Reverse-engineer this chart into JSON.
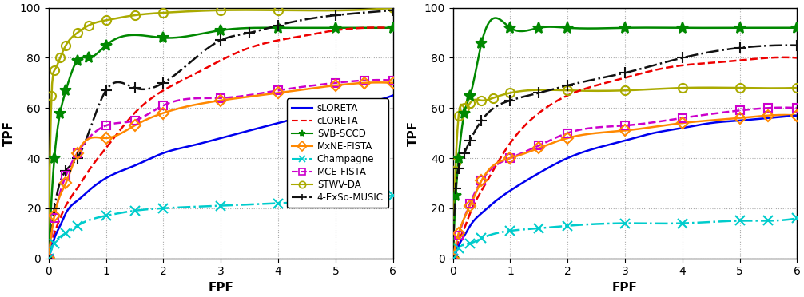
{
  "plot1": {
    "xlabel": "FPF",
    "ylabel": "TPF",
    "xlim": [
      0,
      6
    ],
    "ylim": [
      0,
      100
    ],
    "xticks": [
      0,
      1,
      2,
      3,
      4,
      5,
      6
    ],
    "yticks": [
      0,
      20,
      40,
      60,
      80,
      100
    ],
    "curves": {
      "sLORETA": {
        "color": "#0000ee",
        "linestyle": "-",
        "marker": null,
        "markersize": 0,
        "linewidth": 1.8,
        "markevery": null,
        "x": [
          0,
          0.05,
          0.1,
          0.2,
          0.3,
          0.5,
          0.7,
          1.0,
          1.5,
          2.0,
          2.5,
          3.0,
          3.5,
          4.0,
          4.5,
          5.0,
          5.5,
          6.0
        ],
        "y": [
          0,
          4,
          8,
          13,
          18,
          23,
          27,
          32,
          37,
          42,
          45,
          48,
          51,
          54,
          57,
          60,
          62,
          65
        ]
      },
      "cLORETA": {
        "color": "#ee0000",
        "linestyle": "--",
        "marker": null,
        "markersize": 0,
        "linewidth": 1.8,
        "markevery": null,
        "x": [
          0,
          0.05,
          0.1,
          0.2,
          0.3,
          0.5,
          0.7,
          1.0,
          1.5,
          2.0,
          2.5,
          3.0,
          3.5,
          4.0,
          4.5,
          5.0,
          5.5,
          6.0
        ],
        "y": [
          0,
          6,
          10,
          16,
          21,
          28,
          35,
          44,
          58,
          67,
          73,
          79,
          84,
          87,
          89,
          91,
          92,
          92
        ]
      },
      "SVB-SCCD": {
        "color": "#008800",
        "linestyle": "-",
        "marker": "*",
        "markersize": 10,
        "linewidth": 1.8,
        "markevery": [
          0,
          1,
          2,
          3,
          4,
          5,
          6,
          7,
          8,
          9,
          10,
          11
        ],
        "x": [
          0,
          0.1,
          0.2,
          0.3,
          0.5,
          0.7,
          1.0,
          2.0,
          3.0,
          4.0,
          5.0,
          6.0
        ],
        "y": [
          0,
          40,
          58,
          67,
          79,
          80,
          85,
          88,
          91,
          92,
          92,
          92
        ]
      },
      "MxNE-FISTA": {
        "color": "#ff8800",
        "linestyle": "-",
        "marker": "D",
        "markersize": 7,
        "linewidth": 1.8,
        "markevery": [
          0,
          1,
          2,
          3,
          4,
          5,
          6,
          7,
          8,
          9,
          10,
          11
        ],
        "x": [
          0,
          0.1,
          0.3,
          0.5,
          1.0,
          1.5,
          2.0,
          3.0,
          4.0,
          5.0,
          5.5,
          6.0
        ],
        "y": [
          0,
          17,
          30,
          42,
          48,
          53,
          58,
          63,
          66,
          69,
          70,
          70
        ]
      },
      "Champagne": {
        "color": "#00cccc",
        "linestyle": "-.",
        "marker": "x",
        "markersize": 8,
        "linewidth": 1.8,
        "markevery": [
          0,
          1,
          2,
          3,
          4,
          5,
          6,
          7,
          8,
          9,
          10,
          11
        ],
        "x": [
          0,
          0.1,
          0.3,
          0.5,
          1.0,
          1.5,
          2.0,
          3.0,
          4.0,
          5.0,
          5.5,
          6.0
        ],
        "y": [
          0,
          6,
          10,
          13,
          17,
          19,
          20,
          21,
          22,
          23,
          24,
          25
        ]
      },
      "MCE-FISTA": {
        "color": "#cc00cc",
        "linestyle": "--",
        "marker": "s",
        "markersize": 7,
        "linewidth": 1.8,
        "markevery": [
          0,
          1,
          2,
          3,
          4,
          5,
          6,
          7,
          8,
          9,
          10,
          11
        ],
        "x": [
          0,
          0.1,
          0.3,
          0.5,
          1.0,
          1.5,
          2.0,
          3.0,
          4.0,
          5.0,
          5.5,
          6.0
        ],
        "y": [
          0,
          16,
          33,
          42,
          53,
          55,
          61,
          64,
          67,
          70,
          71,
          71
        ]
      },
      "STWV-DA": {
        "color": "#aaaa00",
        "linestyle": "-",
        "marker": "o",
        "markersize": 8,
        "linewidth": 1.8,
        "markevery": [
          0,
          1,
          2,
          3,
          4,
          5,
          6,
          7,
          8,
          9,
          10,
          11,
          12
        ],
        "x": [
          0,
          0.05,
          0.1,
          0.2,
          0.3,
          0.5,
          0.7,
          1.0,
          1.5,
          2.0,
          3.0,
          4.0,
          6.0
        ],
        "y": [
          0,
          65,
          75,
          80,
          85,
          90,
          93,
          95,
          97,
          98,
          99,
          99,
          100
        ]
      },
      "4-ExSo-MUSIC": {
        "color": "#111111",
        "linestyle": "-.",
        "marker": "+",
        "markersize": 10,
        "linewidth": 1.8,
        "markevery": [
          0,
          1,
          2,
          3,
          4,
          5,
          6,
          7,
          8,
          9,
          10,
          11
        ],
        "x": [
          0,
          0.1,
          0.3,
          0.5,
          1.0,
          1.5,
          2.0,
          3.0,
          3.5,
          4.0,
          5.0,
          6.0
        ],
        "y": [
          0,
          20,
          35,
          40,
          67,
          68,
          70,
          87,
          90,
          93,
          97,
          99
        ]
      }
    }
  },
  "plot2": {
    "xlabel": "FPF",
    "ylabel": "TPF",
    "xlim": [
      0,
      6
    ],
    "ylim": [
      0,
      100
    ],
    "xticks": [
      0,
      1,
      2,
      3,
      4,
      5,
      6
    ],
    "yticks": [
      0,
      20,
      40,
      60,
      80,
      100
    ],
    "curves": {
      "sLORETA": {
        "color": "#0000ee",
        "linestyle": "-",
        "marker": null,
        "markersize": 0,
        "linewidth": 1.8,
        "markevery": null,
        "x": [
          0,
          0.05,
          0.1,
          0.2,
          0.3,
          0.5,
          0.7,
          1.0,
          1.5,
          2.0,
          2.5,
          3.0,
          3.5,
          4.0,
          4.5,
          5.0,
          5.5,
          6.0
        ],
        "y": [
          0,
          2,
          5,
          9,
          13,
          18,
          22,
          27,
          34,
          40,
          44,
          47,
          50,
          52,
          54,
          55,
          56,
          57
        ]
      },
      "cLORETA": {
        "color": "#ee0000",
        "linestyle": "--",
        "marker": null,
        "markersize": 0,
        "linewidth": 1.8,
        "markevery": null,
        "x": [
          0,
          0.05,
          0.1,
          0.2,
          0.3,
          0.5,
          0.7,
          1.0,
          1.5,
          2.0,
          2.5,
          3.0,
          3.5,
          4.0,
          4.5,
          5.0,
          5.5,
          6.0
        ],
        "y": [
          0,
          4,
          7,
          12,
          18,
          27,
          35,
          46,
          58,
          65,
          69,
          72,
          75,
          77,
          78,
          79,
          80,
          80
        ]
      },
      "SVB-SCCD": {
        "color": "#008800",
        "linestyle": "-",
        "marker": "*",
        "markersize": 10,
        "linewidth": 1.8,
        "markevery": [
          0,
          1,
          2,
          3,
          4,
          5,
          6,
          7,
          8,
          9,
          10,
          11,
          12
        ],
        "x": [
          0,
          0.05,
          0.1,
          0.2,
          0.3,
          0.5,
          1.0,
          1.5,
          2.0,
          3.0,
          4.0,
          5.0,
          6.0
        ],
        "y": [
          0,
          25,
          40,
          58,
          65,
          86,
          92,
          92,
          92,
          92,
          92,
          92,
          92
        ]
      },
      "MxNE-FISTA": {
        "color": "#ff8800",
        "linestyle": "-",
        "marker": "D",
        "markersize": 7,
        "linewidth": 1.8,
        "markevery": [
          0,
          1,
          2,
          3,
          4,
          5,
          6,
          7,
          8,
          9,
          10,
          11
        ],
        "x": [
          0,
          0.1,
          0.3,
          0.5,
          1.0,
          1.5,
          2.0,
          3.0,
          4.0,
          5.0,
          5.5,
          6.0
        ],
        "y": [
          0,
          10,
          21,
          31,
          40,
          44,
          48,
          51,
          54,
          56,
          57,
          57
        ]
      },
      "Champagne": {
        "color": "#00cccc",
        "linestyle": "-.",
        "marker": "x",
        "markersize": 8,
        "linewidth": 1.8,
        "markevery": [
          0,
          1,
          2,
          3,
          4,
          5,
          6,
          7,
          8,
          9,
          10,
          11
        ],
        "x": [
          0,
          0.1,
          0.3,
          0.5,
          1.0,
          1.5,
          2.0,
          3.0,
          4.0,
          5.0,
          5.5,
          6.0
        ],
        "y": [
          0,
          4,
          6,
          8,
          11,
          12,
          13,
          14,
          14,
          15,
          15,
          16
        ]
      },
      "MCE-FISTA": {
        "color": "#cc00cc",
        "linestyle": "--",
        "marker": "s",
        "markersize": 7,
        "linewidth": 1.8,
        "markevery": [
          0,
          1,
          2,
          3,
          4,
          5,
          6,
          7,
          8,
          9,
          10,
          11
        ],
        "x": [
          0,
          0.1,
          0.3,
          0.5,
          1.0,
          1.5,
          2.0,
          3.0,
          4.0,
          5.0,
          5.5,
          6.0
        ],
        "y": [
          0,
          9,
          22,
          31,
          40,
          45,
          50,
          53,
          56,
          59,
          60,
          60
        ]
      },
      "STWV-DA": {
        "color": "#aaaa00",
        "linestyle": "-",
        "marker": "o",
        "markersize": 8,
        "linewidth": 1.8,
        "markevery": [
          0,
          1,
          2,
          3,
          4,
          5,
          6,
          7,
          8,
          9,
          10,
          11,
          12
        ],
        "x": [
          0,
          0.05,
          0.1,
          0.2,
          0.3,
          0.5,
          0.7,
          1.0,
          2.0,
          3.0,
          4.0,
          5.0,
          6.0
        ],
        "y": [
          0,
          38,
          57,
          60,
          62,
          63,
          64,
          66,
          67,
          67,
          68,
          68,
          68
        ]
      },
      "4-ExSo-MUSIC": {
        "color": "#111111",
        "linestyle": "-.",
        "marker": "+",
        "markersize": 10,
        "linewidth": 1.8,
        "markevery": [
          0,
          1,
          2,
          3,
          4,
          5,
          6,
          7,
          8,
          9,
          10,
          11,
          12
        ],
        "x": [
          0,
          0.05,
          0.1,
          0.2,
          0.3,
          0.5,
          1.0,
          1.5,
          2.0,
          3.0,
          4.0,
          5.0,
          6.0
        ],
        "y": [
          0,
          28,
          36,
          42,
          47,
          55,
          63,
          66,
          69,
          74,
          80,
          84,
          85
        ]
      }
    }
  },
  "legend_order": [
    "sLORETA",
    "cLORETA",
    "SVB-SCCD",
    "MxNE-FISTA",
    "Champagne",
    "MCE-FISTA",
    "STWV-DA",
    "4-ExSo-MUSIC"
  ],
  "legend_styles": {
    "sLORETA": {
      "color": "#0000ee",
      "linestyle": "-",
      "marker": null,
      "mfc": null
    },
    "cLORETA": {
      "color": "#ee0000",
      "linestyle": "--",
      "marker": null,
      "mfc": null
    },
    "SVB-SCCD": {
      "color": "#008800",
      "linestyle": "-",
      "marker": "*",
      "mfc": "#008800"
    },
    "MxNE-FISTA": {
      "color": "#ff8800",
      "linestyle": "-",
      "marker": "D",
      "mfc": "none"
    },
    "Champagne": {
      "color": "#00cccc",
      "linestyle": "-.",
      "marker": "x",
      "mfc": "#00cccc"
    },
    "MCE-FISTA": {
      "color": "#cc00cc",
      "linestyle": "--",
      "marker": "s",
      "mfc": "none"
    },
    "STWV-DA": {
      "color": "#aaaa00",
      "linestyle": "-",
      "marker": "o",
      "mfc": "none"
    },
    "4-ExSo-MUSIC": {
      "color": "#111111",
      "linestyle": "-.",
      "marker": "+",
      "mfc": "#111111"
    }
  },
  "grid_color": "#aaaaaa",
  "grid_linestyle": ":",
  "background_color": "#ffffff",
  "fig_width": 10.06,
  "fig_height": 3.72
}
